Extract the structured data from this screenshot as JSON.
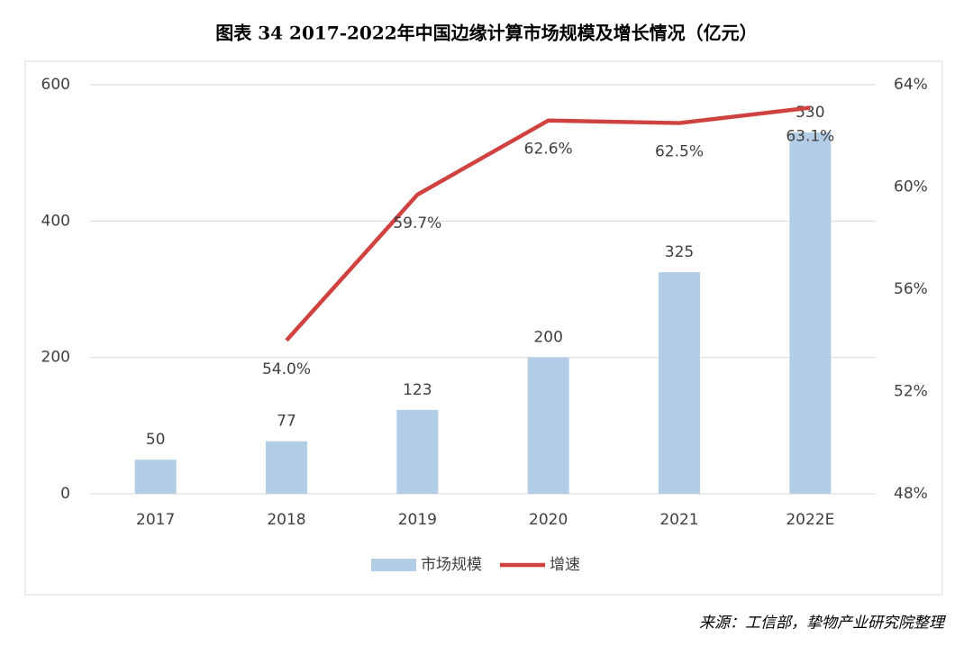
{
  "chart_data": {
    "type": "bar",
    "title": "图表 34  2017-2022年中国边缘计算市场规模及增长情况（亿元）",
    "source": "来源：工信部，挚物产业研究院整理",
    "categories": [
      "2017",
      "2018",
      "2019",
      "2020",
      "2021",
      "2022E"
    ],
    "series": [
      {
        "name": "市场规模",
        "type": "bar",
        "color": "#b4cde6",
        "values": [
          50,
          77,
          123,
          200,
          325,
          530
        ]
      },
      {
        "name": "增速",
        "type": "line",
        "axis": "y2",
        "color": "#d0423f",
        "values": [
          null,
          54.0,
          59.7,
          62.6,
          62.5,
          63.1
        ],
        "value_labels": [
          null,
          "54.0%",
          "59.7%",
          "62.6%",
          "62.5%",
          "63.1%"
        ]
      }
    ],
    "ylim": [
      0,
      600
    ],
    "yticks": [
      0,
      200,
      400,
      600
    ],
    "y2lim": [
      48,
      64
    ],
    "y2ticks": [
      {
        "value": 48,
        "label": "48%"
      },
      {
        "value": 52,
        "label": "52%"
      },
      {
        "value": 56,
        "label": "56%"
      },
      {
        "value": 60,
        "label": "60%"
      },
      {
        "value": 64,
        "label": "64%"
      }
    ],
    "grid": true,
    "legend": "bottom"
  }
}
